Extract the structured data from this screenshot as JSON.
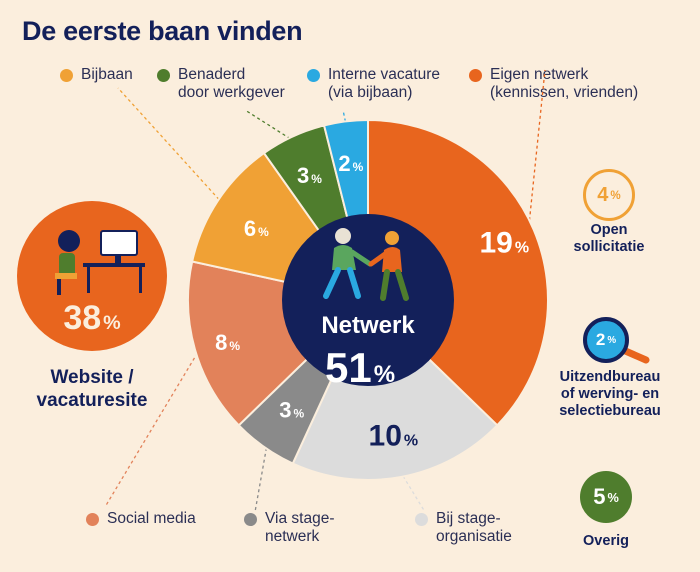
{
  "title": "De eerste baan vinden",
  "colors": {
    "navy": "#13205a",
    "orange": "#e8651e",
    "light_orange": "#f0a135",
    "salmon": "#e2825a",
    "green": "#4f7d2d",
    "blue": "#2aa9e1",
    "gray": "#8a8a8a",
    "light_gray": "#dcdcdc",
    "background": "#fbeedd"
  },
  "legend": {
    "bijbaan": "Bijbaan",
    "benaderd": [
      "Benaderd",
      "door werkgever"
    ],
    "intern": [
      "Interne vacature",
      "(via bijbaan)"
    ],
    "eigen": [
      "Eigen netwerk",
      "(kennissen, vrienden)"
    ],
    "social": "Social media",
    "stage_netwerk": [
      "Via stage-",
      "netwerk"
    ],
    "stage_org": [
      "Bij stage-",
      "organisatie"
    ]
  },
  "center": {
    "label": "Netwerk",
    "value": "51",
    "unit": "%"
  },
  "website": {
    "value": "38",
    "unit": "%",
    "label": [
      "Website /",
      "vacaturesite"
    ]
  },
  "open": {
    "value": "4",
    "unit": "%",
    "label": [
      "Open",
      "sollicitatie"
    ]
  },
  "uitzend": {
    "value": "2",
    "unit": "%",
    "label": [
      "Uitzendbureau",
      "of werving- en",
      "selectiebureau"
    ]
  },
  "overig": {
    "value": "5",
    "unit": "%",
    "label": "Overig"
  },
  "chart_data": {
    "type": "pie",
    "title": "De eerste baan vinden",
    "center_label": "Netwerk 51%",
    "slices": [
      {
        "label": "Eigen netwerk (kennissen, vrienden)",
        "value": 19,
        "color": "#e8651e"
      },
      {
        "label": "Bij stage-organisatie",
        "value": 10,
        "color": "#dcdcdc"
      },
      {
        "label": "Via stage-netwerk",
        "value": 3,
        "color": "#8a8a8a"
      },
      {
        "label": "Social media",
        "value": 8,
        "color": "#e2825a"
      },
      {
        "label": "Bijbaan",
        "value": 6,
        "color": "#f0a135"
      },
      {
        "label": "Benaderd door werkgever",
        "value": 3,
        "color": "#4f7d2d"
      },
      {
        "label": "Interne vacature (via bijbaan)",
        "value": 2,
        "color": "#2aa9e1"
      }
    ],
    "other_categories": [
      {
        "label": "Website / vacaturesite",
        "value": 38
      },
      {
        "label": "Open sollicitatie",
        "value": 4
      },
      {
        "label": "Uitzendbureau of werving- en selectiebureau",
        "value": 2
      },
      {
        "label": "Overig",
        "value": 5
      }
    ]
  }
}
